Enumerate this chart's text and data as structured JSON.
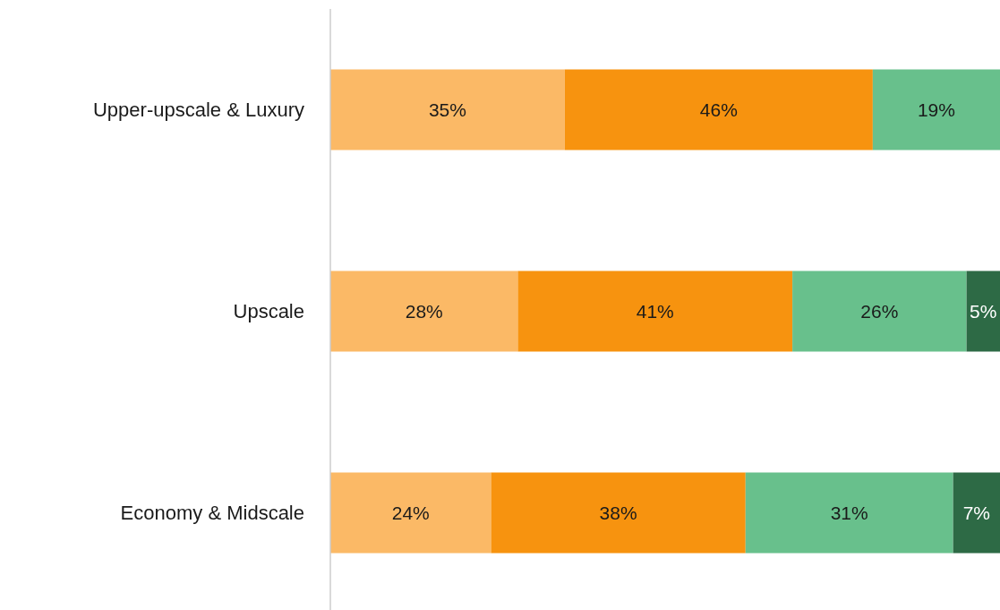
{
  "chart_data": {
    "type": "bar",
    "orientation": "horizontal",
    "stacked": true,
    "categories": [
      "Upper-upscale & Luxury",
      "Upscale",
      "Economy & Midscale"
    ],
    "xlim": [
      0,
      100
    ],
    "tick_labels": "y",
    "series": [
      {
        "color": "#fbb966",
        "values": [
          35,
          28,
          24
        ],
        "value_labels": [
          "35%",
          "28%",
          "24%"
        ]
      },
      {
        "color": "#f7930f",
        "values": [
          46,
          41,
          38
        ],
        "value_labels": [
          "46%",
          "41%",
          "38%"
        ]
      },
      {
        "color": "#68c08c",
        "values": [
          19,
          26,
          31
        ],
        "value_labels": [
          "19%",
          "26%",
          "31%"
        ]
      },
      {
        "color": "#2d6a45",
        "values": [
          null,
          5,
          7
        ],
        "value_labels": [
          null,
          "5%",
          "7%"
        ]
      }
    ]
  }
}
